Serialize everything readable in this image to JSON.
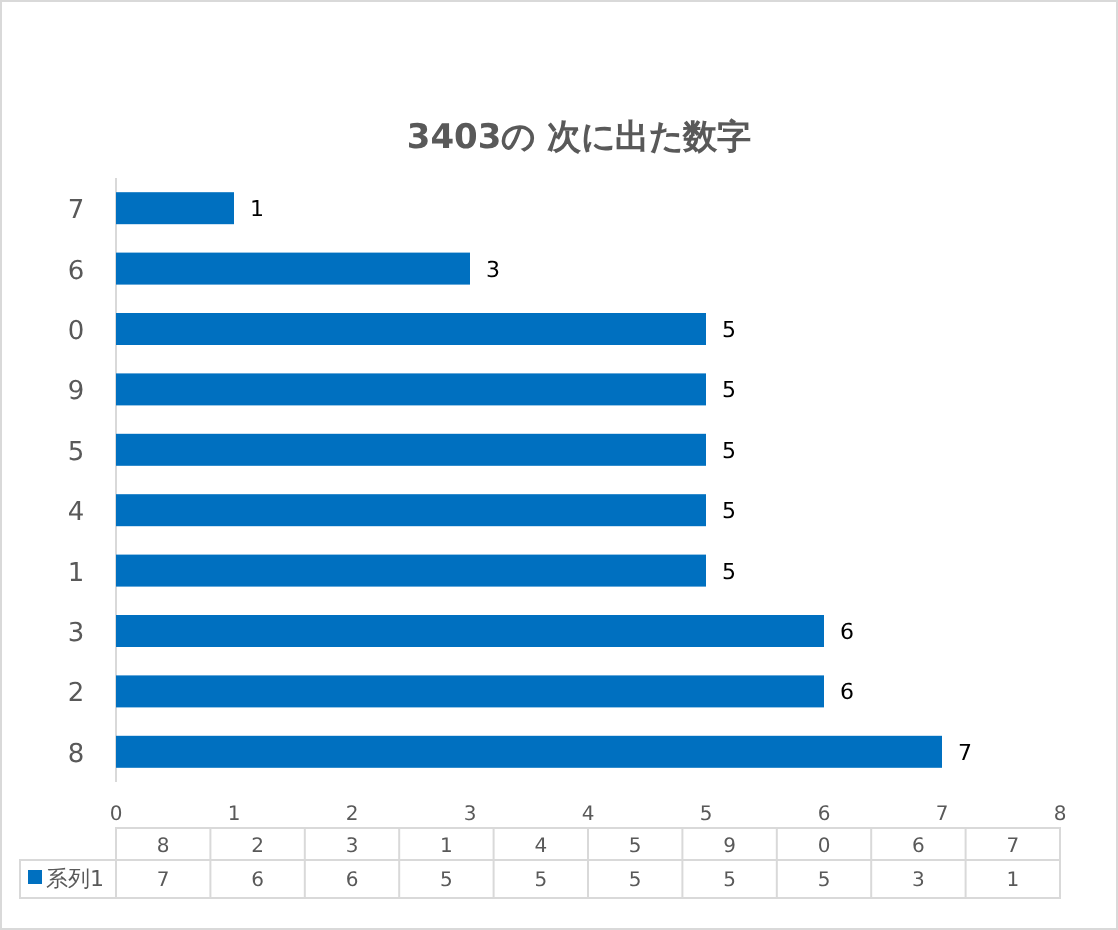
{
  "chart_data": {
    "type": "bar",
    "orientation": "horizontal",
    "title": "3403の 次に出た数字",
    "categories": [
      "7",
      "6",
      "0",
      "9",
      "5",
      "4",
      "1",
      "3",
      "2",
      "8"
    ],
    "series": [
      {
        "name": "系列1",
        "color": "#0070c0",
        "values": [
          1,
          3,
          5,
          5,
          5,
          5,
          5,
          6,
          6,
          7
        ]
      }
    ],
    "xlim": [
      0,
      8
    ],
    "xticks": [
      0,
      1,
      2,
      3,
      4,
      5,
      6,
      7,
      8
    ],
    "grid": false,
    "data_labels": true
  }
}
